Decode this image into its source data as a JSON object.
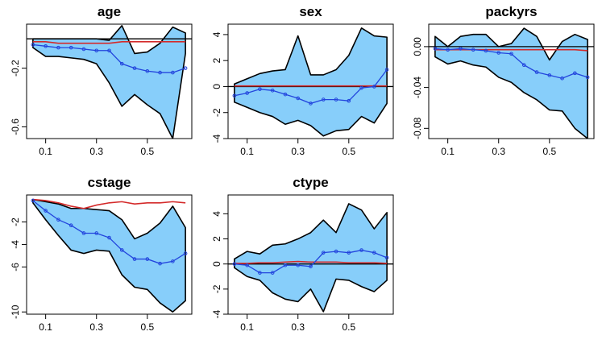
{
  "colors": {
    "band_fill": "#87CEFA",
    "band_edge": "#000000",
    "estimate": "#2244DD",
    "reference": "#D42A2A",
    "zero_line": "#000000"
  },
  "chart_data": [
    {
      "type": "area",
      "title": "age",
      "x": [
        0.05,
        0.1,
        0.15,
        0.2,
        0.25,
        0.3,
        0.35,
        0.4,
        0.45,
        0.5,
        0.55,
        0.6,
        0.65
      ],
      "xlim": [
        0.025,
        0.675
      ],
      "ylim": [
        -0.68,
        0.1
      ],
      "xticks": [
        0.1,
        0.3,
        0.5
      ],
      "xtick_labels": [
        "0.1",
        "0.3",
        "0.5"
      ],
      "yticks": [
        -0.2,
        -0.6
      ],
      "ytick_labels": [
        "-0.2",
        "-0.6"
      ],
      "zero": 0,
      "upper": [
        0.0,
        0.0,
        0.0,
        0.0,
        0.0,
        0.0,
        -0.01,
        0.09,
        -0.1,
        -0.09,
        -0.03,
        0.08,
        0.04
      ],
      "lower": [
        -0.06,
        -0.12,
        -0.12,
        -0.13,
        -0.14,
        -0.17,
        -0.3,
        -0.46,
        -0.38,
        -0.45,
        -0.51,
        -0.68,
        -0.1
      ],
      "series": [
        {
          "name": "estimate",
          "values": [
            -0.04,
            -0.05,
            -0.06,
            -0.06,
            -0.07,
            -0.08,
            -0.08,
            -0.17,
            -0.2,
            -0.22,
            -0.23,
            -0.23,
            -0.2
          ]
        },
        {
          "name": "reference",
          "values": [
            -0.02,
            -0.02,
            -0.03,
            -0.03,
            -0.03,
            -0.03,
            -0.03,
            -0.02,
            -0.02,
            -0.02,
            -0.02,
            -0.02,
            -0.02
          ]
        }
      ]
    },
    {
      "type": "area",
      "title": "sex",
      "x": [
        0.05,
        0.1,
        0.15,
        0.2,
        0.25,
        0.3,
        0.35,
        0.4,
        0.45,
        0.5,
        0.55,
        0.6,
        0.65
      ],
      "xlim": [
        0.025,
        0.675
      ],
      "ylim": [
        -4,
        4.8
      ],
      "xticks": [
        0.1,
        0.3,
        0.5
      ],
      "xtick_labels": [
        "0.1",
        "0.3",
        "0.5"
      ],
      "yticks": [
        -4,
        -2,
        0,
        2,
        4
      ],
      "ytick_labels": [
        "-4",
        "-2",
        "0",
        "2",
        "4"
      ],
      "zero": 0,
      "upper": [
        0.2,
        0.6,
        1.0,
        1.2,
        1.3,
        3.9,
        0.9,
        0.9,
        1.3,
        2.4,
        4.5,
        3.9,
        3.8
      ],
      "lower": [
        -1.2,
        -1.6,
        -2.0,
        -2.3,
        -2.9,
        -2.6,
        -3.0,
        -3.8,
        -3.4,
        -3.3,
        -2.3,
        -2.8,
        -1.3
      ],
      "series": [
        {
          "name": "estimate",
          "values": [
            -0.7,
            -0.5,
            -0.2,
            -0.3,
            -0.6,
            -0.9,
            -1.3,
            -1.0,
            -1.0,
            -1.1,
            -0.1,
            0.0,
            1.3
          ]
        },
        {
          "name": "reference",
          "values": [
            0.05,
            0.05,
            0.05,
            0.05,
            0.05,
            0.05,
            0.05,
            0.05,
            0.05,
            0.05,
            0.05,
            0.05,
            0.05
          ]
        }
      ]
    },
    {
      "type": "area",
      "title": "packyrs",
      "x": [
        0.05,
        0.1,
        0.15,
        0.2,
        0.25,
        0.3,
        0.35,
        0.4,
        0.45,
        0.5,
        0.55,
        0.6,
        0.65
      ],
      "xlim": [
        0.025,
        0.675
      ],
      "ylim": [
        -0.09,
        0.022
      ],
      "xticks": [
        0.1,
        0.3,
        0.5
      ],
      "xtick_labels": [
        "0.1",
        "0.3",
        "0.5"
      ],
      "yticks": [
        0.0,
        -0.04,
        -0.08
      ],
      "ytick_labels": [
        "0.00",
        "-0.04",
        "-0.08"
      ],
      "zero": 0,
      "upper": [
        0.01,
        0.0,
        0.01,
        0.012,
        0.012,
        0.0,
        0.003,
        0.018,
        0.01,
        -0.013,
        0.005,
        0.012,
        0.007
      ],
      "lower": [
        -0.01,
        -0.017,
        -0.014,
        -0.018,
        -0.02,
        -0.03,
        -0.035,
        -0.045,
        -0.052,
        -0.062,
        -0.063,
        -0.08,
        -0.09
      ],
      "series": [
        {
          "name": "estimate",
          "values": [
            -0.002,
            -0.003,
            -0.002,
            -0.003,
            -0.004,
            -0.006,
            -0.007,
            -0.018,
            -0.025,
            -0.028,
            -0.031,
            -0.026,
            -0.03
          ]
        },
        {
          "name": "reference",
          "values": [
            -0.003,
            -0.003,
            -0.003,
            -0.003,
            -0.003,
            -0.003,
            -0.003,
            -0.003,
            -0.003,
            -0.003,
            -0.003,
            -0.003,
            -0.004
          ]
        }
      ]
    },
    {
      "type": "area",
      "title": "cstage",
      "x": [
        0.05,
        0.1,
        0.15,
        0.2,
        0.25,
        0.3,
        0.35,
        0.4,
        0.45,
        0.5,
        0.55,
        0.6,
        0.65
      ],
      "xlim": [
        0.025,
        0.675
      ],
      "ylim": [
        -10.2,
        0.4
      ],
      "xticks": [
        0.1,
        0.3,
        0.5
      ],
      "xtick_labels": [
        "0.1",
        "0.3",
        "0.5"
      ],
      "yticks": [
        -2,
        -4,
        -6,
        -10
      ],
      "ytick_labels": [
        "-2",
        "-4",
        "-6",
        "-10"
      ],
      "zero": null,
      "upper": [
        0.0,
        -0.2,
        -0.4,
        -0.8,
        -0.8,
        -0.9,
        -1.0,
        -1.8,
        -3.5,
        -3.0,
        -2.1,
        -0.6,
        -2.5
      ],
      "lower": [
        -0.3,
        -1.8,
        -3.2,
        -4.5,
        -4.8,
        -4.5,
        -4.6,
        -6.7,
        -7.8,
        -8.0,
        -9.2,
        -10.0,
        -9.0
      ],
      "series": [
        {
          "name": "estimate",
          "values": [
            -0.1,
            -1.0,
            -1.8,
            -2.3,
            -3.0,
            -3.0,
            -3.4,
            -4.5,
            -5.3,
            -5.3,
            -5.7,
            -5.5,
            -4.8
          ]
        },
        {
          "name": "reference",
          "values": [
            0.0,
            -0.1,
            -0.3,
            -0.6,
            -0.8,
            -0.5,
            -0.3,
            -0.2,
            -0.4,
            -0.3,
            -0.3,
            -0.2,
            -0.3
          ]
        }
      ]
    },
    {
      "type": "area",
      "title": "ctype",
      "x": [
        0.05,
        0.1,
        0.15,
        0.2,
        0.25,
        0.3,
        0.35,
        0.4,
        0.45,
        0.5,
        0.55,
        0.6,
        0.65
      ],
      "xlim": [
        0.025,
        0.675
      ],
      "ylim": [
        -4,
        5.5
      ],
      "xticks": [
        0.1,
        0.3,
        0.5
      ],
      "xtick_labels": [
        "0.1",
        "0.3",
        "0.5"
      ],
      "yticks": [
        -4,
        -2,
        0,
        2,
        4
      ],
      "ytick_labels": [
        "-4",
        "-2",
        "0",
        "2",
        "4"
      ],
      "zero": 0,
      "upper": [
        0.4,
        1.0,
        0.8,
        1.5,
        1.6,
        2.0,
        2.5,
        3.5,
        2.5,
        4.8,
        4.3,
        2.8,
        4.1
      ],
      "lower": [
        -0.3,
        -1.0,
        -1.3,
        -2.3,
        -2.8,
        -3.0,
        -2.0,
        -3.8,
        -1.2,
        -1.3,
        -1.8,
        -2.2,
        -1.3
      ],
      "series": [
        {
          "name": "estimate",
          "values": [
            0.0,
            -0.1,
            -0.7,
            -0.7,
            -0.1,
            -0.1,
            -0.2,
            0.9,
            1.0,
            0.9,
            1.1,
            0.9,
            0.5
          ]
        },
        {
          "name": "reference",
          "values": [
            0.05,
            0.05,
            0.1,
            0.1,
            0.15,
            0.2,
            0.15,
            0.15,
            0.15,
            0.1,
            0.1,
            0.1,
            0.05
          ]
        }
      ]
    }
  ]
}
